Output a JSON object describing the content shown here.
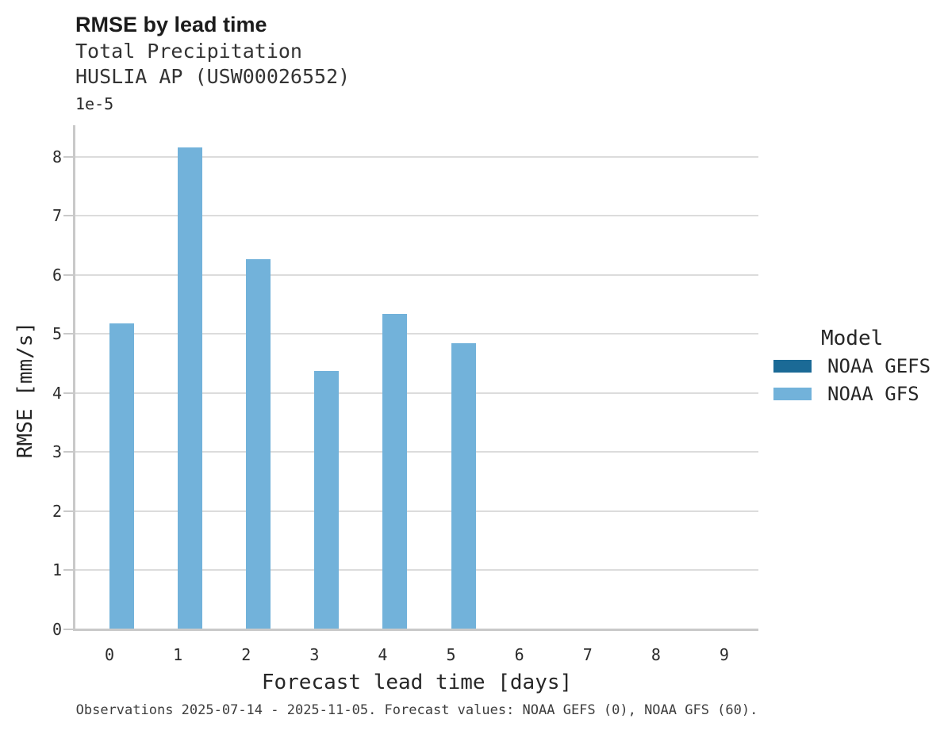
{
  "figure": {
    "title": "RMSE by lead time",
    "subtitle_line1": "Total Precipitation",
    "subtitle_line2": "HUSLIA AP (USW00026552)",
    "y_offset_label": "1e-5",
    "caption": "Observations 2025-07-14 - 2025-11-05. Forecast values: NOAA GEFS (0), NOAA GFS (60)."
  },
  "legend": {
    "title": "Model"
  },
  "chart_data": {
    "type": "bar",
    "title": "RMSE by lead time",
    "subtitle": [
      "Total Precipitation",
      "HUSLIA AP (USW00026552)"
    ],
    "xlabel": "Forecast lead time [days]",
    "ylabel": "RMSE [mm/s]",
    "y_scale_note": "y tick values are multiplied by 1e-5",
    "categories": [
      0,
      1,
      2,
      3,
      4,
      5,
      6,
      7,
      8,
      9
    ],
    "series": [
      {
        "name": "NOAA GEFS",
        "color": "#1b6a96",
        "values": [
          null,
          null,
          null,
          null,
          null,
          null,
          null,
          null,
          null,
          null
        ]
      },
      {
        "name": "NOAA GFS",
        "color": "#72b2da",
        "values": [
          5.16e-05,
          8.14e-05,
          6.25e-05,
          4.36e-05,
          5.32e-05,
          4.83e-05,
          null,
          null,
          null,
          null
        ]
      }
    ],
    "ylim": [
      0,
      8.5e-05
    ],
    "y_ticks": [
      0,
      1,
      2,
      3,
      4,
      5,
      6,
      7,
      8
    ],
    "grid": true,
    "legend_title": "Model",
    "legend_position": "center right",
    "caption": "Observations 2025-07-14 - 2025-11-05. Forecast values: NOAA GEFS (0), NOAA GFS (60)."
  }
}
